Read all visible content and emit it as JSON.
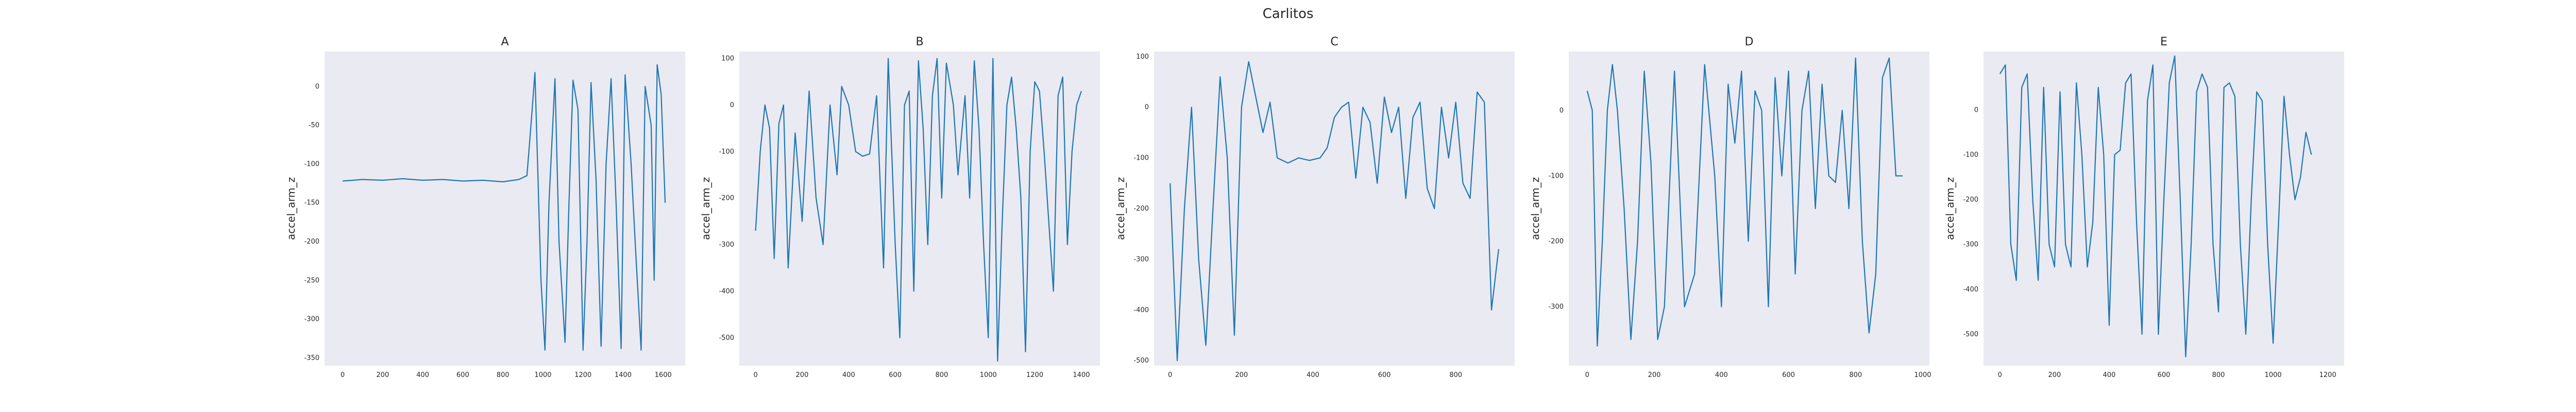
{
  "figure": {
    "suptitle": "Carlitos"
  },
  "style": {
    "axes_bg": "#eaeaf2",
    "line_color": "#1f77b4",
    "text_color": "#262626",
    "grid": false
  },
  "chart_data": [
    {
      "type": "line",
      "title": "A",
      "xlabel": "",
      "ylabel": "accel_arm_z",
      "xlim": [
        -90,
        1710
      ],
      "ylim": [
        -360,
        45
      ],
      "xticks": [
        0,
        200,
        400,
        600,
        800,
        1000,
        1200,
        1400,
        1600
      ],
      "yticks": [
        0,
        -50,
        -100,
        -150,
        -200,
        -250,
        -300,
        -350
      ],
      "x": [
        0,
        100,
        200,
        300,
        400,
        500,
        600,
        700,
        800,
        880,
        920,
        940,
        960,
        990,
        1010,
        1030,
        1060,
        1080,
        1110,
        1130,
        1150,
        1175,
        1200,
        1220,
        1240,
        1265,
        1290,
        1315,
        1340,
        1365,
        1390,
        1410,
        1440,
        1460,
        1490,
        1510,
        1540,
        1555,
        1570,
        1590,
        1610
      ],
      "y": [
        -122,
        -120,
        -121,
        -119,
        -121,
        -120,
        -122,
        -121,
        -123,
        -120,
        -115,
        -50,
        18,
        -250,
        -340,
        -150,
        10,
        -200,
        -330,
        -150,
        8,
        -30,
        -340,
        -200,
        5,
        -120,
        -335,
        -100,
        10,
        -150,
        -338,
        15,
        -100,
        -200,
        -340,
        0,
        -50,
        -250,
        28,
        -10,
        -150
      ]
    },
    {
      "type": "line",
      "title": "B",
      "xlabel": "",
      "ylabel": "accel_arm_z",
      "xlim": [
        -70,
        1480
      ],
      "ylim": [
        -560,
        115
      ],
      "xticks": [
        0,
        200,
        400,
        600,
        800,
        1000,
        1200,
        1400
      ],
      "yticks": [
        100,
        0,
        -100,
        -200,
        -300,
        -400,
        -500
      ],
      "x": [
        0,
        20,
        40,
        60,
        80,
        100,
        120,
        140,
        170,
        200,
        230,
        260,
        290,
        320,
        350,
        370,
        400,
        430,
        460,
        490,
        520,
        550,
        570,
        600,
        620,
        640,
        660,
        680,
        700,
        720,
        740,
        760,
        780,
        800,
        820,
        850,
        870,
        900,
        920,
        940,
        960,
        980,
        1000,
        1020,
        1040,
        1060,
        1080,
        1100,
        1120,
        1140,
        1160,
        1180,
        1200,
        1220,
        1240,
        1260,
        1280,
        1300,
        1320,
        1340,
        1360,
        1380,
        1400
      ],
      "y": [
        -270,
        -100,
        0,
        -50,
        -330,
        -40,
        0,
        -350,
        -60,
        -250,
        30,
        -200,
        -300,
        0,
        -150,
        40,
        0,
        -100,
        -110,
        -105,
        20,
        -350,
        100,
        -300,
        -500,
        0,
        30,
        -400,
        95,
        -50,
        -300,
        20,
        100,
        -200,
        90,
        0,
        -150,
        20,
        -200,
        95,
        -50,
        -300,
        -500,
        100,
        -550,
        -250,
        0,
        60,
        -50,
        -200,
        -530,
        -100,
        50,
        30,
        -100,
        -250,
        -400,
        20,
        60,
        -300,
        -100,
        0,
        30
      ]
    },
    {
      "type": "line",
      "title": "C",
      "xlabel": "",
      "ylabel": "accel_arm_z",
      "xlim": [
        -45,
        965
      ],
      "ylim": [
        -510,
        110
      ],
      "xticks": [
        0,
        200,
        400,
        600,
        800
      ],
      "yticks": [
        100,
        0,
        -100,
        -200,
        -300,
        -400,
        -500
      ],
      "x": [
        0,
        20,
        40,
        60,
        80,
        100,
        120,
        140,
        160,
        180,
        200,
        220,
        240,
        260,
        280,
        300,
        330,
        360,
        390,
        420,
        440,
        460,
        480,
        500,
        520,
        540,
        560,
        580,
        600,
        620,
        640,
        660,
        680,
        700,
        720,
        740,
        760,
        780,
        800,
        820,
        840,
        860,
        880,
        900,
        920
      ],
      "y": [
        -150,
        -500,
        -200,
        0,
        -300,
        -470,
        -200,
        60,
        -100,
        -450,
        0,
        90,
        20,
        -50,
        10,
        -100,
        -110,
        -100,
        -105,
        -100,
        -80,
        -20,
        0,
        10,
        -140,
        0,
        -30,
        -150,
        20,
        -50,
        0,
        -180,
        -20,
        10,
        -160,
        -200,
        0,
        -100,
        10,
        -150,
        -180,
        30,
        10,
        -400,
        -280
      ]
    },
    {
      "type": "line",
      "title": "D",
      "xlabel": "",
      "ylabel": "accel_arm_z",
      "xlim": [
        -55,
        1020
      ],
      "ylim": [
        -390,
        90
      ],
      "xticks": [
        0,
        200,
        400,
        600,
        800,
        1000
      ],
      "yticks": [
        0,
        -100,
        -200,
        -300
      ],
      "x": [
        0,
        15,
        30,
        45,
        60,
        75,
        90,
        110,
        130,
        150,
        170,
        190,
        210,
        230,
        260,
        290,
        320,
        350,
        380,
        400,
        420,
        440,
        460,
        480,
        500,
        520,
        540,
        560,
        580,
        600,
        620,
        640,
        660,
        680,
        700,
        720,
        740,
        760,
        780,
        800,
        820,
        840,
        860,
        880,
        900,
        920,
        940
      ],
      "y": [
        30,
        0,
        -360,
        -200,
        0,
        70,
        0,
        -150,
        -350,
        -200,
        60,
        -80,
        -350,
        -300,
        60,
        -300,
        -250,
        70,
        -100,
        -300,
        40,
        -50,
        60,
        -200,
        30,
        0,
        -300,
        50,
        -100,
        60,
        -250,
        0,
        60,
        -150,
        40,
        -100,
        -110,
        0,
        -150,
        80,
        -200,
        -340,
        -250,
        50,
        80,
        -100,
        -100
      ]
    },
    {
      "type": "line",
      "title": "E",
      "xlabel": "",
      "ylabel": "accel_arm_z",
      "xlim": [
        -60,
        1260
      ],
      "ylim": [
        -570,
        130
      ],
      "xticks": [
        0,
        200,
        400,
        600,
        800,
        1000,
        1200
      ],
      "yticks": [
        0,
        -100,
        -200,
        -300,
        -400,
        -500
      ],
      "x": [
        0,
        20,
        40,
        60,
        80,
        100,
        120,
        140,
        160,
        180,
        200,
        220,
        240,
        260,
        280,
        300,
        320,
        340,
        360,
        380,
        400,
        420,
        440,
        460,
        480,
        500,
        520,
        540,
        560,
        580,
        600,
        620,
        640,
        660,
        680,
        700,
        720,
        740,
        760,
        780,
        800,
        820,
        840,
        860,
        880,
        900,
        920,
        940,
        960,
        980,
        1000,
        1020,
        1040,
        1060,
        1080,
        1100,
        1120,
        1140
      ],
      "y": [
        80,
        100,
        -300,
        -380,
        50,
        80,
        -200,
        -380,
        50,
        -300,
        -350,
        40,
        -300,
        -350,
        60,
        -100,
        -350,
        -250,
        50,
        -100,
        -480,
        -100,
        -90,
        60,
        80,
        -250,
        -500,
        20,
        100,
        -500,
        -200,
        60,
        120,
        -200,
        -550,
        -300,
        40,
        80,
        50,
        -300,
        -450,
        50,
        60,
        30,
        -300,
        -500,
        -200,
        40,
        20,
        -300,
        -520,
        -250,
        30,
        -100,
        -200,
        -150,
        -50,
        -100
      ]
    }
  ]
}
